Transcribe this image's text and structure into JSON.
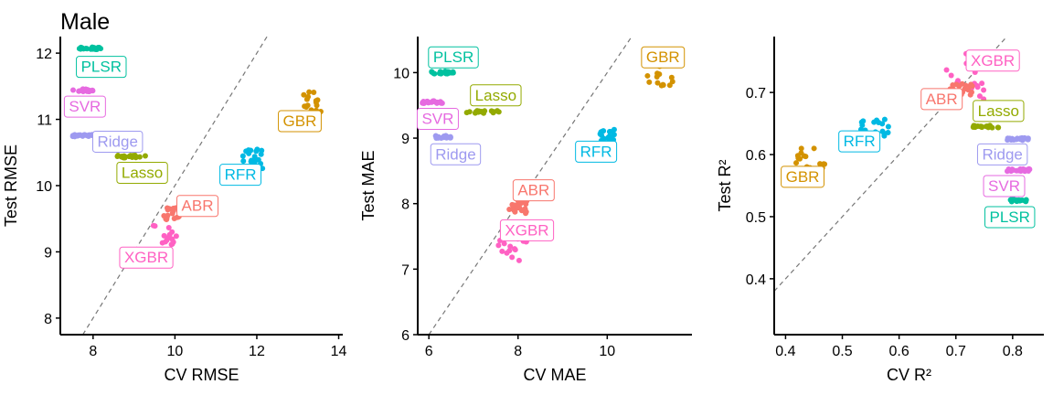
{
  "title": "Male",
  "colors": {
    "ABR": "#F8766D",
    "GBR": "#D39200",
    "Lasso": "#93AA00",
    "PLSR": "#00C19F",
    "RFR": "#00B9E3",
    "Ridge": "#9E9AF0",
    "SVR": "#E66AE0",
    "XGBR": "#FF61C3"
  },
  "chart_data": [
    {
      "type": "scatter",
      "xlabel": "CV RMSE",
      "ylabel": "Test RMSE",
      "xlim": [
        7.2,
        14.1
      ],
      "ylim": [
        7.75,
        12.25
      ],
      "xticks": [
        8,
        10,
        12,
        14
      ],
      "yticks": [
        8,
        9,
        10,
        11,
        12
      ],
      "reference_line": "y = x",
      "series": [
        {
          "name": "PLSR",
          "center": [
            7.9,
            12.07
          ],
          "spread": [
            0.3,
            0.02
          ],
          "label_at": [
            8.2,
            11.8
          ]
        },
        {
          "name": "SVR",
          "center": [
            7.8,
            11.44
          ],
          "spread": [
            0.3,
            0.02
          ],
          "label_at": [
            7.8,
            11.2
          ]
        },
        {
          "name": "Ridge",
          "center": [
            7.8,
            10.75
          ],
          "spread": [
            0.3,
            0.02
          ],
          "label_at": [
            8.6,
            10.67
          ]
        },
        {
          "name": "Lasso",
          "center": [
            8.9,
            10.44
          ],
          "spread": [
            0.4,
            0.02
          ],
          "label_at": [
            9.2,
            10.2
          ]
        },
        {
          "name": "GBR",
          "center": [
            13.35,
            11.2
          ],
          "spread": [
            0.25,
            0.22
          ],
          "label_at": [
            13.05,
            10.98
          ]
        },
        {
          "name": "RFR",
          "center": [
            11.9,
            10.4
          ],
          "spread": [
            0.25,
            0.15
          ],
          "label_at": [
            11.6,
            10.17
          ]
        },
        {
          "name": "ABR",
          "center": [
            9.95,
            9.58
          ],
          "spread": [
            0.25,
            0.1
          ],
          "label_at": [
            10.55,
            9.7
          ]
        },
        {
          "name": "XGBR",
          "center": [
            9.75,
            9.15
          ],
          "spread": [
            0.3,
            0.25
          ],
          "label_at": [
            9.3,
            8.92
          ]
        }
      ]
    },
    {
      "type": "scatter",
      "xlabel": "CV MAE",
      "ylabel": "Test MAE",
      "xlim": [
        5.75,
        11.9
      ],
      "ylim": [
        6,
        10.55
      ],
      "xticks": [
        6,
        8,
        10
      ],
      "yticks": [
        6,
        7,
        8,
        9,
        10
      ],
      "reference_line": "y = x",
      "series": [
        {
          "name": "PLSR",
          "center": [
            6.3,
            10.0
          ],
          "spread": [
            0.25,
            0.02
          ],
          "label_at": [
            6.55,
            10.24
          ]
        },
        {
          "name": "SVR",
          "center": [
            6.1,
            9.55
          ],
          "spread": [
            0.25,
            0.02
          ],
          "label_at": [
            6.2,
            9.3
          ]
        },
        {
          "name": "Lasso",
          "center": [
            7.2,
            9.4
          ],
          "spread": [
            0.4,
            0.02
          ],
          "label_at": [
            7.5,
            9.66
          ]
        },
        {
          "name": "Ridge",
          "center": [
            6.3,
            9.02
          ],
          "spread": [
            0.2,
            0.02
          ],
          "label_at": [
            6.6,
            8.76
          ]
        },
        {
          "name": "GBR",
          "center": [
            11.2,
            10.0
          ],
          "spread": [
            0.3,
            0.2
          ],
          "label_at": [
            11.25,
            10.24
          ]
        },
        {
          "name": "RFR",
          "center": [
            10.0,
            9.03
          ],
          "spread": [
            0.2,
            0.1
          ],
          "label_at": [
            9.75,
            8.8
          ]
        },
        {
          "name": "ABR",
          "center": [
            8.0,
            7.95
          ],
          "spread": [
            0.2,
            0.1
          ],
          "label_at": [
            8.35,
            8.21
          ]
        },
        {
          "name": "XGBR",
          "center": [
            7.85,
            7.35
          ],
          "spread": [
            0.35,
            0.25
          ],
          "label_at": [
            8.2,
            7.6
          ]
        }
      ]
    },
    {
      "type": "scatter",
      "xlabel": "CV R²",
      "ylabel": "Test R²",
      "xlim": [
        0.38,
        0.855
      ],
      "ylim": [
        0.31,
        0.79
      ],
      "xticks": [
        0.4,
        0.5,
        0.6,
        0.7,
        0.8
      ],
      "yticks": [
        0.4,
        0.5,
        0.6,
        0.7
      ],
      "reference_line": "y = x",
      "series": [
        {
          "name": "XGBR",
          "center": [
            0.715,
            0.725
          ],
          "spread": [
            0.04,
            0.04
          ],
          "label_at": [
            0.765,
            0.752
          ]
        },
        {
          "name": "ABR",
          "center": [
            0.71,
            0.706
          ],
          "spread": [
            0.02,
            0.01
          ],
          "label_at": [
            0.675,
            0.69
          ]
        },
        {
          "name": "Lasso",
          "center": [
            0.755,
            0.645
          ],
          "spread": [
            0.025,
            0.002
          ],
          "label_at": [
            0.775,
            0.671
          ]
        },
        {
          "name": "RFR",
          "center": [
            0.56,
            0.645
          ],
          "spread": [
            0.03,
            0.015
          ],
          "label_at": [
            0.53,
            0.622
          ]
        },
        {
          "name": "GBR",
          "center": [
            0.44,
            0.59
          ],
          "spread": [
            0.03,
            0.025
          ],
          "label_at": [
            0.43,
            0.565
          ]
        },
        {
          "name": "Ridge",
          "center": [
            0.81,
            0.625
          ],
          "spread": [
            0.02,
            0.002
          ],
          "label_at": [
            0.782,
            0.601
          ]
        },
        {
          "name": "SVR",
          "center": [
            0.81,
            0.575
          ],
          "spread": [
            0.02,
            0.002
          ],
          "label_at": [
            0.785,
            0.55
          ]
        },
        {
          "name": "PLSR",
          "center": [
            0.81,
            0.526
          ],
          "spread": [
            0.015,
            0.002
          ],
          "label_at": [
            0.795,
            0.5
          ]
        }
      ]
    }
  ]
}
